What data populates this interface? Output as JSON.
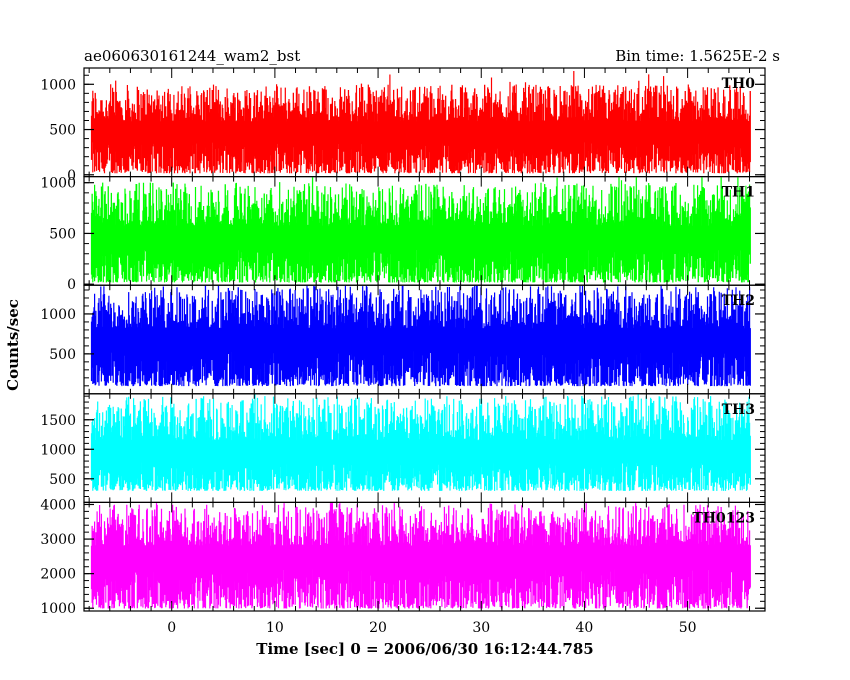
{
  "header": {
    "title": "ae060630161244_wam2_bst",
    "bin_time": "Bin time: 1.5625E-2 s"
  },
  "chart_data": {
    "type": "line",
    "style": "histogram-light-curve",
    "xlabel": "Time [sec] 0 = 2006/06/30 16:12:44.785",
    "ylabel": "Counts/sec",
    "xlim": [
      -8.5,
      57.5
    ],
    "x_data_range": [
      -7.8,
      56.1
    ],
    "x_ticks": [
      0,
      10,
      20,
      30,
      40,
      50
    ],
    "x_tick_labels": [
      "0",
      "10",
      "20",
      "30",
      "40",
      "50"
    ],
    "x_minor_step": 2,
    "grid": false,
    "panels": [
      {
        "name": "TH0",
        "color": "#ff0000",
        "ylim": [
          -20,
          1180
        ],
        "y_ticks": [
          0,
          500,
          1000
        ],
        "y_tick_labels": [
          "0",
          "500",
          "1000"
        ],
        "y_minor_step": 100,
        "typical_range": [
          20,
          1000
        ],
        "mean": 450
      },
      {
        "name": "TH1",
        "color": "#00ff00",
        "ylim": [
          -10,
          1060
        ],
        "y_ticks": [
          0,
          500,
          1000
        ],
        "y_tick_labels": [
          "0",
          "500",
          "1000"
        ],
        "y_minor_step": 100,
        "typical_range": [
          20,
          1000
        ],
        "mean": 430
      },
      {
        "name": "TH2",
        "color": "#0000ff",
        "ylim": [
          0,
          1360
        ],
        "y_ticks": [
          500,
          1000
        ],
        "y_tick_labels": [
          "500",
          "1000"
        ],
        "y_minor_step": 100,
        "typical_range": [
          100,
          1350
        ],
        "mean": 640
      },
      {
        "name": "TH3",
        "color": "#00ffff",
        "ylim": [
          100,
          1940
        ],
        "y_ticks": [
          500,
          1000,
          1500
        ],
        "y_tick_labels": [
          "500",
          "1000",
          "1500"
        ],
        "y_minor_step": 100,
        "typical_range": [
          300,
          1900
        ],
        "mean": 900
      },
      {
        "name": "TH0123",
        "color": "#ff00ff",
        "ylim": [
          920,
          4060
        ],
        "y_ticks": [
          1000,
          2000,
          3000,
          4000
        ],
        "y_tick_labels": [
          "1000",
          "2000",
          "3000",
          "4000"
        ],
        "y_minor_step": 200,
        "typical_range": [
          1000,
          4000
        ],
        "mean": 2400
      }
    ]
  }
}
